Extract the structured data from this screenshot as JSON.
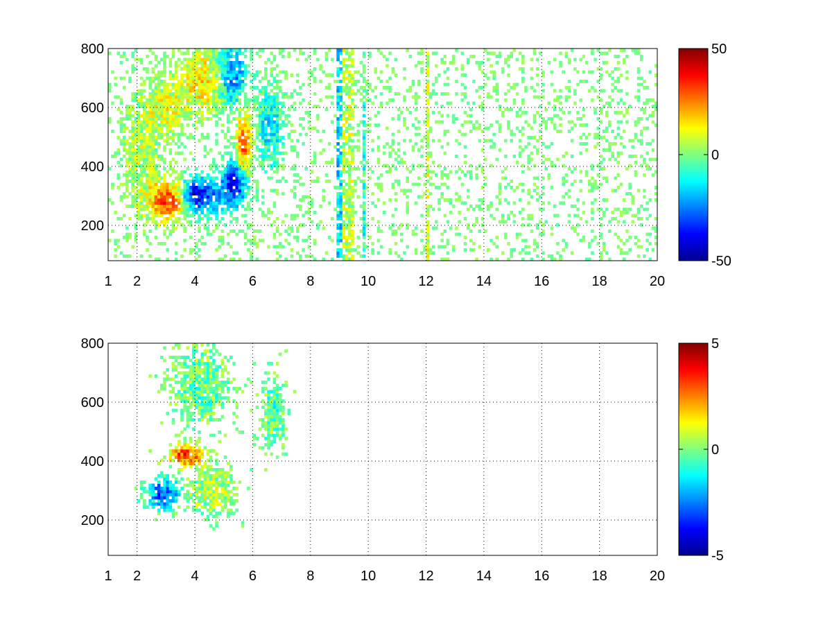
{
  "chart_data": [
    {
      "type": "heatmap",
      "title": "",
      "xlabel": "",
      "ylabel": "",
      "xlim": [
        1,
        20
      ],
      "ylim": [
        80,
        800
      ],
      "xticks": [
        1,
        2,
        4,
        6,
        8,
        10,
        12,
        14,
        16,
        18,
        20
      ],
      "yticks": [
        200,
        400,
        600,
        800
      ],
      "grid": true,
      "colorbar": {
        "colormap": "jet",
        "range": [
          -50,
          50
        ],
        "ticks": [
          50,
          0,
          -50
        ]
      },
      "blobs": [
        {
          "x": 3.1,
          "y": 280,
          "sx": 0.45,
          "sy": 45,
          "value": 32
        },
        {
          "x": 4.3,
          "y": 300,
          "sx": 0.5,
          "sy": 45,
          "value": -30
        },
        {
          "x": 3.9,
          "y": 305,
          "sx": 0.25,
          "sy": 30,
          "value": -20
        },
        {
          "x": 5.4,
          "y": 345,
          "sx": 0.3,
          "sy": 55,
          "value": -38
        },
        {
          "x": 5.7,
          "y": 470,
          "sx": 0.18,
          "sy": 80,
          "value": 30
        },
        {
          "x": 3.0,
          "y": 600,
          "sx": 0.5,
          "sy": 60,
          "value": 10
        },
        {
          "x": 4.3,
          "y": 690,
          "sx": 0.5,
          "sy": 70,
          "value": 15
        },
        {
          "x": 5.3,
          "y": 710,
          "sx": 0.35,
          "sy": 70,
          "value": -25
        },
        {
          "x": 6.6,
          "y": 530,
          "sx": 0.3,
          "sy": 90,
          "value": -15
        },
        {
          "x": 2.2,
          "y": 420,
          "sx": 0.4,
          "sy": 120,
          "value": 6
        }
      ],
      "stripes": [
        {
          "x": 9.2,
          "value": 6
        },
        {
          "x": 9.4,
          "value": 6
        },
        {
          "x": 12.05,
          "value": 8
        },
        {
          "x": 9.0,
          "value": -15
        },
        {
          "x": 9.85,
          "value": -8
        }
      ],
      "noise_amplitude": 10,
      "noise_density_far": 0.18
    },
    {
      "type": "heatmap",
      "title": "",
      "xlabel": "",
      "ylabel": "",
      "xlim": [
        1,
        20
      ],
      "ylim": [
        80,
        800
      ],
      "xticks": [
        1,
        2,
        4,
        6,
        8,
        10,
        12,
        14,
        16,
        18,
        20
      ],
      "yticks": [
        200,
        400,
        600,
        800
      ],
      "grid": true,
      "colorbar": {
        "colormap": "jet",
        "range": [
          -5,
          5
        ],
        "ticks": [
          5,
          0,
          -5
        ]
      },
      "blobs": [
        {
          "x": 2.9,
          "y": 290,
          "sx": 0.4,
          "sy": 35,
          "value": -2.8
        },
        {
          "x": 3.7,
          "y": 420,
          "sx": 0.4,
          "sy": 25,
          "value": 3.2
        },
        {
          "x": 4.6,
          "y": 300,
          "sx": 0.5,
          "sy": 50,
          "value": 0.6
        },
        {
          "x": 4.2,
          "y": 660,
          "sx": 0.6,
          "sy": 80,
          "value": -0.3
        },
        {
          "x": 6.7,
          "y": 560,
          "sx": 0.25,
          "sy": 70,
          "value": -0.5
        }
      ],
      "stripes": [],
      "noise_amplitude": 1.2,
      "noise_density_far": 0.0
    }
  ]
}
